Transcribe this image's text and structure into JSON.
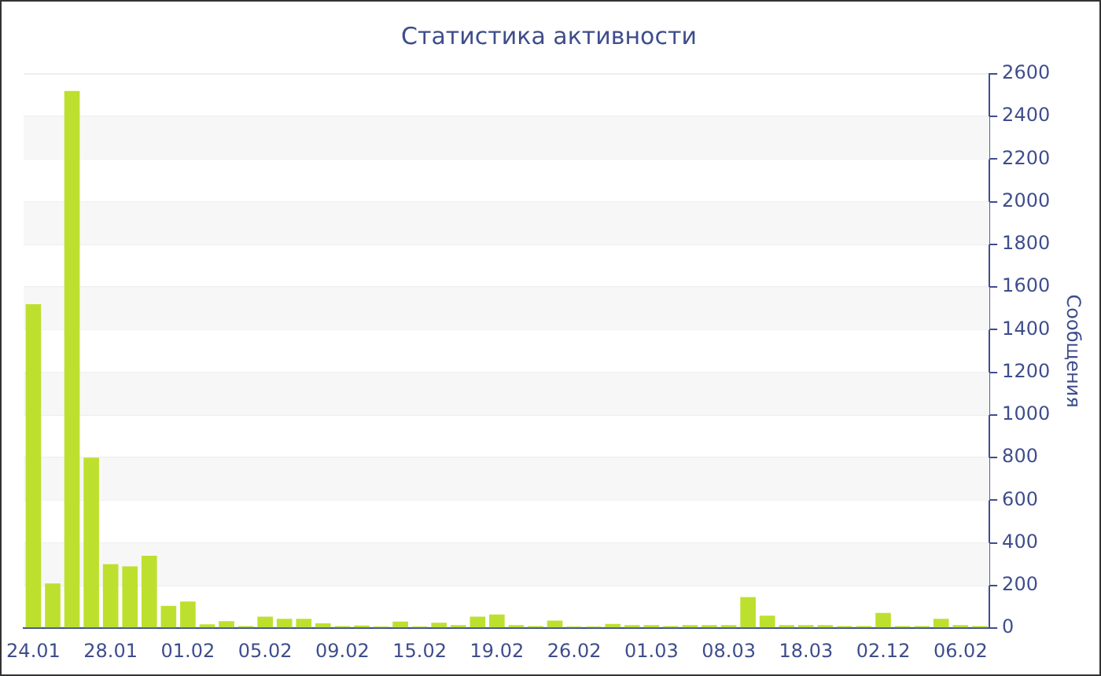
{
  "chart_data": {
    "type": "bar",
    "title": "Статистика активности",
    "ylabel": "Сообщения",
    "categories": [
      "24.01",
      null,
      null,
      null,
      "28.01",
      null,
      null,
      null,
      "01.02",
      null,
      null,
      null,
      "05.02",
      null,
      null,
      null,
      "09.02",
      null,
      null,
      null,
      "15.02",
      null,
      null,
      null,
      "19.02",
      null,
      null,
      null,
      "26.02",
      null,
      null,
      null,
      "01.03",
      null,
      null,
      null,
      "08.03",
      null,
      null,
      null,
      "18.03",
      null,
      null,
      null,
      "02.12",
      null,
      null,
      null,
      "06.02",
      null
    ],
    "values": [
      1520,
      210,
      2520,
      800,
      300,
      290,
      340,
      105,
      125,
      18,
      33,
      10,
      54,
      44,
      44,
      23,
      10,
      13,
      8,
      31,
      8,
      26,
      15,
      54,
      64,
      15,
      10,
      36,
      8,
      8,
      20,
      15,
      15,
      10,
      15,
      15,
      15,
      146,
      59,
      15,
      15,
      15,
      10,
      10,
      72,
      10,
      10,
      44,
      15,
      10
    ],
    "color": "#bde02f",
    "ylim": [
      0,
      2600
    ],
    "yticks": [
      0,
      200,
      400,
      600,
      800,
      1000,
      1200,
      1400,
      1600,
      1800,
      2000,
      2200,
      2400,
      2600
    ],
    "grid": "y",
    "legend": false
  }
}
